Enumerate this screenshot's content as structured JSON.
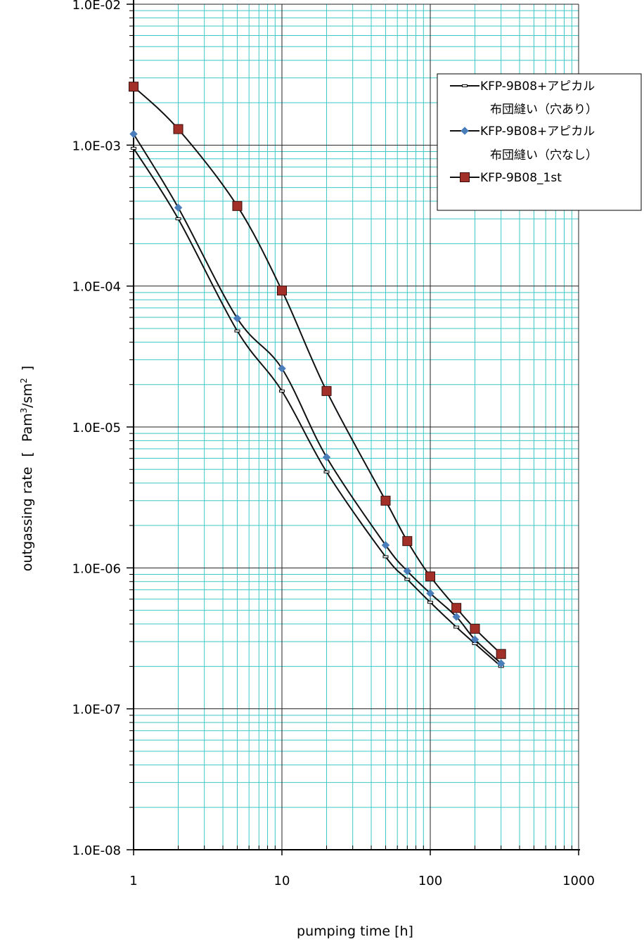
{
  "chart_data": {
    "type": "line",
    "title": "",
    "xlabel": "pumping time [h]",
    "ylabel": "outgassing rate [ Pam3/sm2]",
    "ylabel_main": "outgassing rate",
    "ylabel_bracket_open": "[",
    "ylabel_unit_base": "Pam",
    "ylabel_unit_sup1": "3",
    "ylabel_unit_mid": "/sm",
    "ylabel_unit_sup2": "2",
    "ylabel_bracket_close": "]",
    "x_scale": "log",
    "y_scale": "log",
    "xlim": [
      1,
      1000
    ],
    "ylim": [
      1e-08,
      0.01
    ],
    "x_tick_labels": [
      "1",
      "10",
      "100",
      "1000"
    ],
    "y_tick_labels": [
      "1.0E-08",
      "1.0E-07",
      "1.0E-06",
      "1.0E-05",
      "1.0E-04",
      "1.0E-03",
      "1.0E-02"
    ],
    "grid": true,
    "legend_position": "top-right",
    "series": [
      {
        "name": "KFP-9B08+アピカル布団縫い（穴あり）",
        "legend_lines": [
          "KFP-9B08+アピカル",
          "布団縫い（穴あり）"
        ],
        "marker": "dash",
        "color": "#000000",
        "x": [
          1,
          2,
          5,
          10,
          20,
          50,
          70,
          100,
          150,
          200,
          300
        ],
        "y": [
          0.00095,
          0.0003,
          4.8e-05,
          1.8e-05,
          4.8e-06,
          1.2e-06,
          8.3e-07,
          5.7e-07,
          3.8e-07,
          2.9e-07,
          2e-07
        ]
      },
      {
        "name": "KFP-9B08+アピカル布団縫い（穴なし）",
        "legend_lines": [
          "KFP-9B08+アピカル",
          "布団縫い（穴なし）"
        ],
        "marker": "diamond",
        "color": "#4a7ebb",
        "x": [
          1,
          2,
          5,
          10,
          20,
          50,
          70,
          100,
          150,
          200,
          300
        ],
        "y": [
          0.0012,
          0.00036,
          5.9e-05,
          2.6e-05,
          6.1e-06,
          1.45e-06,
          9.5e-07,
          6.6e-07,
          4.5e-07,
          3.1e-07,
          2.1e-07
        ]
      },
      {
        "name": "KFP-9B08_1st",
        "legend_lines": [
          "KFP-9B08_1st"
        ],
        "marker": "square",
        "color": "#a33028",
        "x": [
          1,
          2,
          5,
          10,
          20,
          50,
          70,
          100,
          150,
          200,
          300
        ],
        "y": [
          0.0026,
          0.0013,
          0.00037,
          9.3e-05,
          1.8e-05,
          3e-06,
          1.55e-06,
          8.7e-07,
          5.2e-07,
          3.7e-07,
          2.45e-07
        ]
      }
    ]
  }
}
